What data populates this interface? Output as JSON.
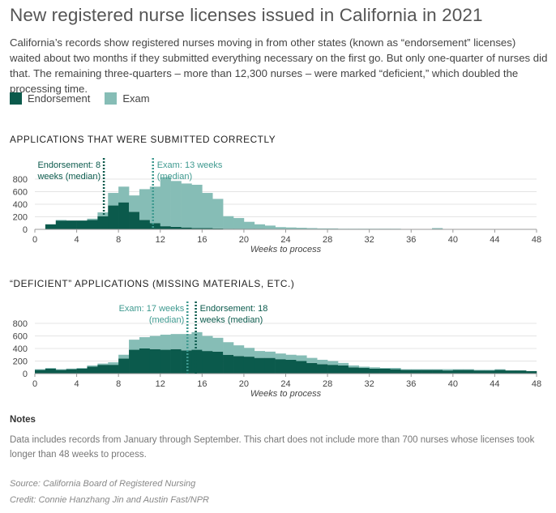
{
  "title": "New registered nurse licenses issued in California in 2021",
  "description": "California’s records show registered nurses moving in from other states (known as “endorsement” licenses) waited about two months if they submitted everything necessary on the first go. But only one-quarter of nurses did that. The remaining three-quarters – more than 12,300 nurses – were marked “deficient,” which doubled the processing time.",
  "legend": [
    {
      "label": "Endorsement",
      "color": "#0b5a4c"
    },
    {
      "label": "Exam",
      "color": "#86bdb6"
    }
  ],
  "notes": {
    "label": "Notes",
    "text": "Data includes records from January through September. This chart does not include more than 700 nurses whose licenses took longer than 48 weeks to process."
  },
  "source": "Source: California Board of Registered Nursing",
  "credit": "Credit: Connie Hanzhang Jin and Austin Fast/NPR",
  "colors": {
    "endorsement": "#0b5a4c",
    "exam": "#86bdb6",
    "axis_text": "#444",
    "grid": "#e4e4e4"
  },
  "chart_data": [
    {
      "type": "bar",
      "stacked": true,
      "title": "APPLICATIONS THAT WERE SUBMITTED CORRECTLY",
      "xlabel": "Weeks to process",
      "xlim": [
        0,
        48
      ],
      "xticks": [
        0,
        4,
        8,
        12,
        16,
        20,
        24,
        28,
        32,
        36,
        40,
        44,
        48
      ],
      "ylim": [
        0,
        900
      ],
      "yticks": [
        0,
        200,
        400,
        600,
        800
      ],
      "bin_width": 1,
      "x": [
        0,
        1,
        2,
        3,
        4,
        5,
        6,
        7,
        8,
        9,
        10,
        11,
        12,
        13,
        14,
        15,
        16,
        17,
        18,
        19,
        20,
        21,
        22,
        23,
        24,
        25,
        26,
        27,
        28,
        29,
        30,
        31,
        32,
        33,
        34,
        35,
        36,
        37,
        38,
        39,
        40,
        41,
        42,
        43,
        44,
        45,
        46,
        47
      ],
      "series": [
        {
          "name": "Endorsement",
          "values": [
            0,
            80,
            140,
            140,
            140,
            150,
            210,
            380,
            430,
            280,
            150,
            100,
            50,
            40,
            30,
            20,
            20,
            15,
            10,
            10,
            10,
            10,
            5,
            5,
            5,
            5,
            5,
            0,
            0,
            0,
            0,
            0,
            0,
            0,
            0,
            0,
            0,
            0,
            0,
            0,
            0,
            0,
            0,
            0,
            0,
            0,
            0,
            0
          ]
        },
        {
          "name": "Exam",
          "values": [
            0,
            0,
            10,
            0,
            0,
            20,
            60,
            200,
            250,
            260,
            490,
            580,
            780,
            730,
            700,
            690,
            560,
            470,
            200,
            170,
            110,
            70,
            55,
            30,
            25,
            20,
            15,
            15,
            15,
            10,
            10,
            10,
            10,
            10,
            10,
            5,
            0,
            0,
            20,
            0,
            0,
            0,
            0,
            0,
            0,
            0,
            0,
            0
          ]
        }
      ],
      "annotations": [
        {
          "text": "Endorsement: 8 weeks (median)",
          "lines": [
            "Endorsement: 8",
            "weeks (median)"
          ],
          "x": 6.6,
          "series": "Endorsement"
        },
        {
          "text": "Exam: 13 weeks (median)",
          "lines": [
            "Exam: 13 weeks",
            "(median)"
          ],
          "x": 11.3,
          "series": "Exam"
        }
      ]
    },
    {
      "type": "bar",
      "stacked": true,
      "title": "“DEFICIENT” APPLICATIONS (MISSING MATERIALS, ETC.)",
      "xlabel": "Weeks to process",
      "xlim": [
        0,
        48
      ],
      "xticks": [
        0,
        4,
        8,
        12,
        16,
        20,
        24,
        28,
        32,
        36,
        40,
        44,
        48
      ],
      "ylim": [
        0,
        900
      ],
      "yticks": [
        0,
        200,
        400,
        600,
        800
      ],
      "bin_width": 1,
      "x": [
        0,
        1,
        2,
        3,
        4,
        5,
        6,
        7,
        8,
        9,
        10,
        11,
        12,
        13,
        14,
        15,
        16,
        17,
        18,
        19,
        20,
        21,
        22,
        23,
        24,
        25,
        26,
        27,
        28,
        29,
        30,
        31,
        32,
        33,
        34,
        35,
        36,
        37,
        38,
        39,
        40,
        41,
        42,
        43,
        44,
        45,
        46,
        47
      ],
      "series": [
        {
          "name": "Endorsement",
          "values": [
            60,
            80,
            60,
            70,
            80,
            110,
            140,
            140,
            240,
            380,
            400,
            390,
            380,
            390,
            370,
            380,
            360,
            350,
            300,
            280,
            270,
            250,
            250,
            230,
            220,
            200,
            170,
            150,
            140,
            130,
            100,
            90,
            80,
            80,
            70,
            60,
            60,
            60,
            60,
            50,
            60,
            60,
            50,
            50,
            60,
            50,
            50,
            40
          ]
        },
        {
          "name": "Exam",
          "values": [
            10,
            10,
            10,
            10,
            10,
            20,
            20,
            40,
            60,
            160,
            180,
            210,
            240,
            240,
            260,
            280,
            240,
            220,
            200,
            170,
            140,
            110,
            100,
            90,
            80,
            90,
            80,
            70,
            60,
            40,
            30,
            20,
            20,
            10,
            20,
            10,
            10,
            10,
            10,
            20,
            10,
            10,
            10,
            10,
            10,
            0,
            0,
            0
          ]
        }
      ],
      "annotations": [
        {
          "text": "Exam: 17 weeks (median)",
          "lines": [
            "Exam: 17 weeks",
            "(median)"
          ],
          "x": 14.6,
          "series": "Exam"
        },
        {
          "text": "Endorsement: 18 weeks (median)",
          "lines": [
            "Endorsement: 18",
            "weeks (median)"
          ],
          "x": 15.4,
          "series": "Endorsement"
        }
      ]
    }
  ]
}
